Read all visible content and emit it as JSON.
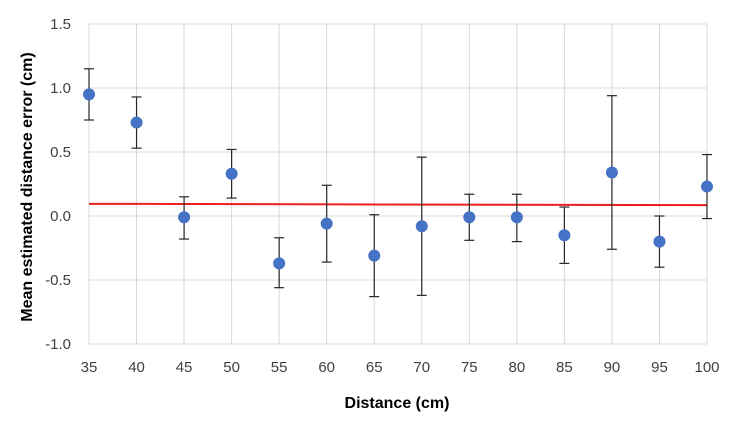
{
  "chart_data": {
    "type": "scatter",
    "xlabel": "Distance (cm)",
    "ylabel": "Mean estimated distance error (cm)",
    "categories": [
      "35",
      "40",
      "45",
      "50",
      "55",
      "60",
      "65",
      "70",
      "75",
      "80",
      "85",
      "90",
      "95",
      "100"
    ],
    "ylim": [
      -1.0,
      1.5
    ],
    "yticks": [
      "-1.0",
      "-0.5",
      "0.0",
      "0.5",
      "1.0",
      "1.5"
    ],
    "grid": true,
    "legend": "none",
    "series": [
      {
        "values": [
          0.95,
          0.73,
          -0.01,
          0.33,
          -0.37,
          -0.06,
          -0.31,
          -0.08,
          -0.01,
          -0.01,
          -0.15,
          0.34,
          -0.2,
          0.23
        ],
        "error_low": [
          0.75,
          0.53,
          -0.18,
          0.14,
          -0.56,
          -0.36,
          -0.63,
          -0.62,
          -0.19,
          -0.2,
          -0.37,
          -0.26,
          -0.4,
          -0.02
        ],
        "error_high": [
          1.15,
          0.93,
          0.15,
          0.52,
          -0.17,
          0.24,
          0.01,
          0.46,
          0.17,
          0.17,
          0.07,
          0.94,
          0.0,
          0.48
        ],
        "color": "#4472c4"
      }
    ],
    "trendline": {
      "start": 0.095,
      "end": 0.085,
      "color": "#e8211c"
    },
    "colors": {
      "grid": "#d9d9d9",
      "error_bar": "#262626",
      "tick_text": "#404040"
    }
  }
}
